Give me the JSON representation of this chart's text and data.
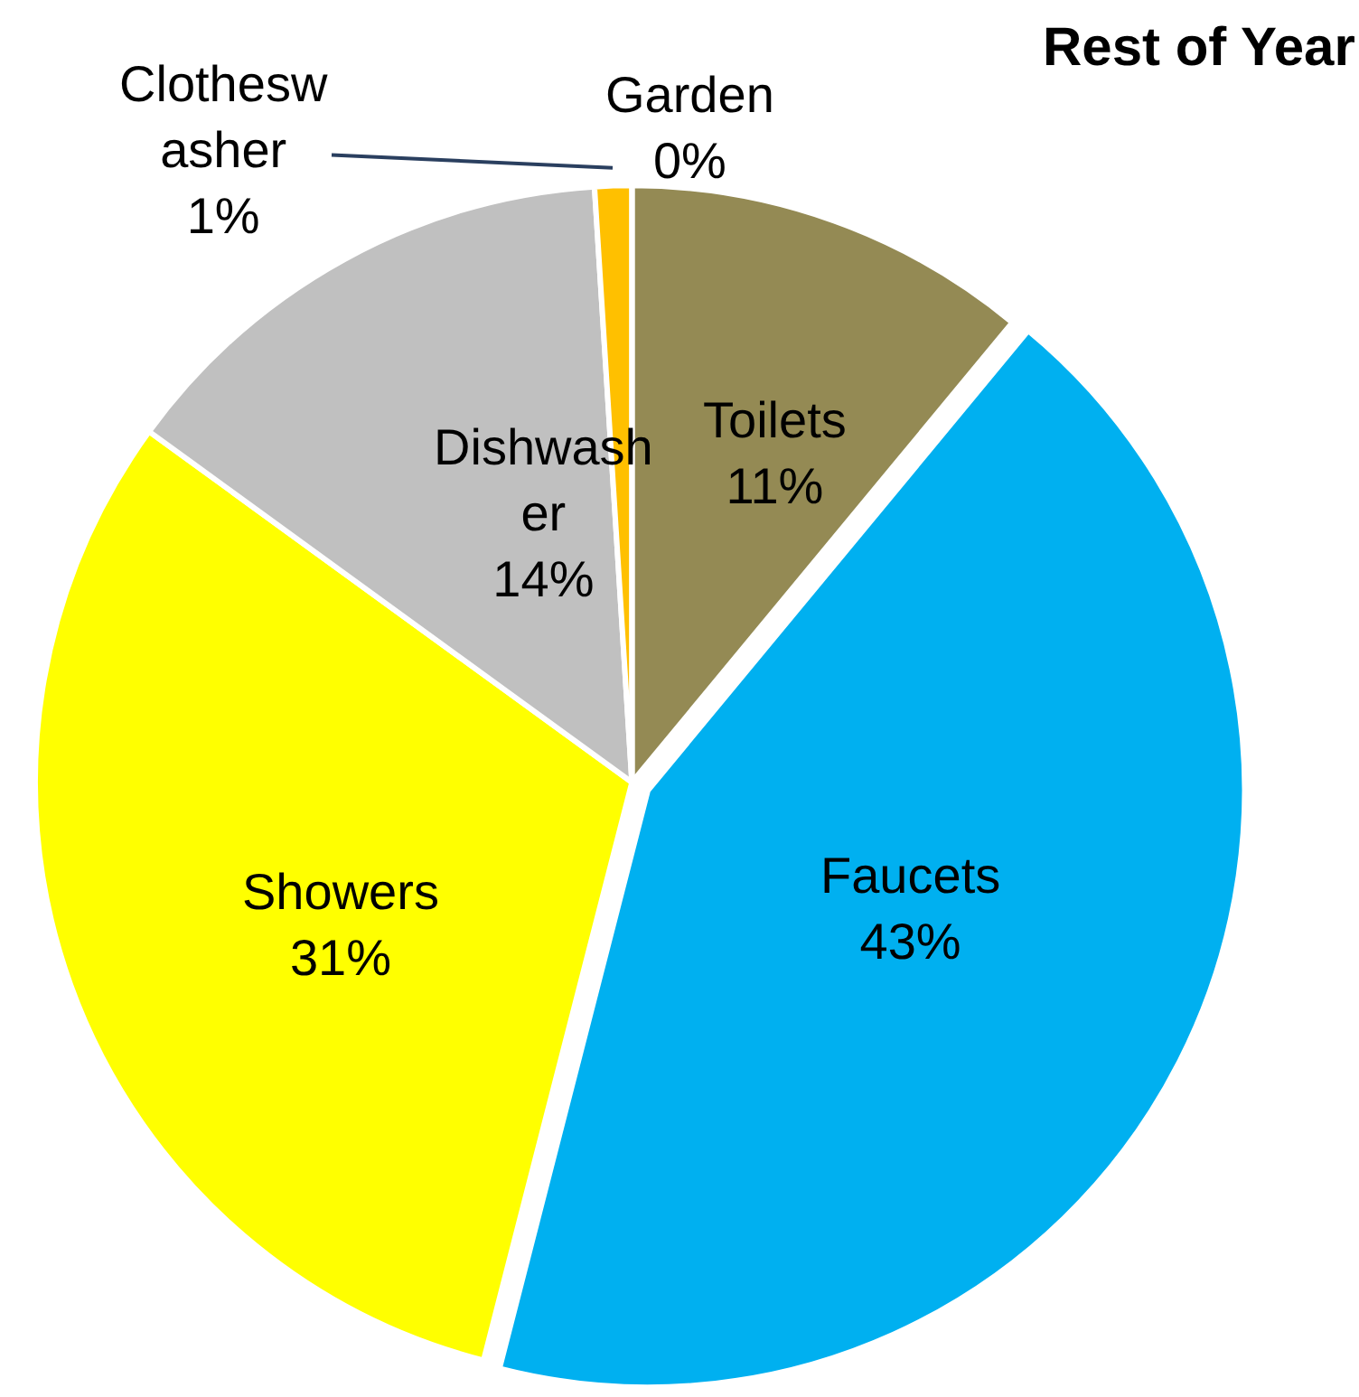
{
  "chart_data": {
    "type": "pie",
    "title": "Rest of Year",
    "categories": [
      "Toilets",
      "Faucets",
      "Showers",
      "Dishwasher",
      "Clotheswasher",
      "Garden"
    ],
    "values": [
      11,
      43,
      31,
      14,
      1,
      0
    ],
    "colors": [
      "#948a54",
      "#00b0f0",
      "#ffff00",
      "#c0c0c0",
      "#ffc000",
      "#92d050"
    ],
    "value_labels": [
      "11%",
      "43%",
      "31%",
      "14%",
      "1%",
      "0%"
    ],
    "legend": false
  }
}
